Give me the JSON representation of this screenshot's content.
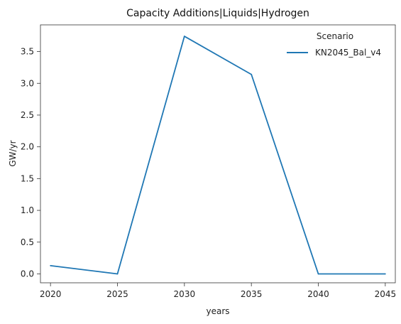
{
  "chart_data": {
    "type": "line",
    "title": "Capacity Additions|Liquids|Hydrogen",
    "xlabel": "years",
    "ylabel": "GW/yr",
    "x": [
      2020,
      2025,
      2030,
      2035,
      2040,
      2045
    ],
    "xticks": [
      "2020",
      "2025",
      "2030",
      "2035",
      "2040",
      "2045"
    ],
    "yticks": [
      "0.0",
      "0.5",
      "1.0",
      "1.5",
      "2.0",
      "2.5",
      "3.0",
      "3.5"
    ],
    "xlim": [
      2019.25,
      2045.75
    ],
    "ylim": [
      -0.14,
      3.92
    ],
    "grid": false,
    "legend": {
      "title": "Scenario",
      "placement": "top-right"
    },
    "series": [
      {
        "name": "KN2045_Bal_v4",
        "color": "#1f77b4",
        "values": [
          0.13,
          0.0,
          3.74,
          3.14,
          0.0,
          0.0
        ]
      }
    ]
  }
}
